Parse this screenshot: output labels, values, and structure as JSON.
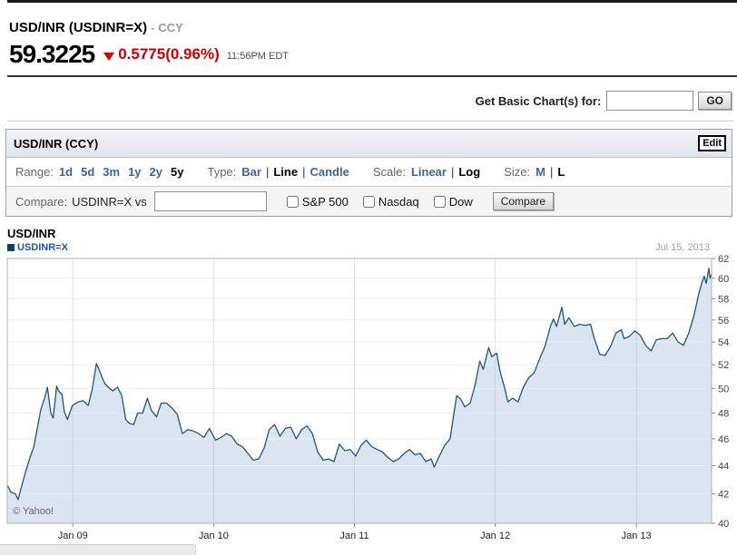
{
  "quote": {
    "title": "USD/INR (USDINR=X)",
    "suffix": "- CCY",
    "price": "59.3225",
    "change": "0.5775(0.96%)",
    "time": "11:56PM EDT",
    "down_color": "#cc0000"
  },
  "get_chart": {
    "label": "Get Basic Chart(s) for:",
    "input_value": "",
    "button": "GO"
  },
  "module": {
    "header": "USD/INR (CCY)",
    "edit_button": "Edit"
  },
  "toolbar": {
    "range_label": "Range:",
    "range_options": [
      {
        "label": "1d",
        "selected": false
      },
      {
        "label": "5d",
        "selected": false
      },
      {
        "label": "3m",
        "selected": false
      },
      {
        "label": "1y",
        "selected": false
      },
      {
        "label": "2y",
        "selected": false
      },
      {
        "label": "5y",
        "selected": true
      }
    ],
    "type_label": "Type:",
    "type_options": [
      {
        "label": "Bar",
        "selected": false
      },
      {
        "label": "Line",
        "selected": true
      },
      {
        "label": "Candle",
        "selected": false
      }
    ],
    "scale_label": "Scale:",
    "scale_options": [
      {
        "label": "Linear",
        "selected": false
      },
      {
        "label": "Log",
        "selected": true
      }
    ],
    "size_label": "Size:",
    "size_options": [
      {
        "label": "M",
        "selected": false
      },
      {
        "label": "L",
        "selected": true
      }
    ]
  },
  "compare": {
    "label": "Compare:",
    "symbol": "USDINR=X vs",
    "input_value": "",
    "checkboxes": [
      "S&P 500",
      "Nasdaq",
      "Dow"
    ],
    "button": "Compare"
  },
  "chart_data": {
    "type": "area",
    "title": "USD/INR",
    "legend": "USDINR=X",
    "date_label": "Jul 15, 2013",
    "copyright": "© Yahoo!",
    "colors": {
      "line": "#1f567c",
      "fill": "#d9e4ef",
      "legend_square": "#0e3f66",
      "grid": "#e4e4e4",
      "year_grid": "#b9b9b9",
      "border": "#b0b0b0"
    },
    "y_axis": {
      "min": 40,
      "max": 62,
      "step": 2,
      "scale": "log",
      "side": "right",
      "ticks": [
        62,
        60,
        58,
        56,
        54,
        52,
        50,
        48,
        46,
        44,
        42,
        40
      ]
    },
    "x_axis": {
      "start": "2008-07-15",
      "end": "2013-07-15",
      "ticks": [
        {
          "date": "2009-01-01",
          "label": "Jan 09"
        },
        {
          "date": "2010-01-01",
          "label": "Jan 10"
        },
        {
          "date": "2011-01-01",
          "label": "Jan 11"
        },
        {
          "date": "2012-01-01",
          "label": "Jan 12"
        },
        {
          "date": "2013-01-01",
          "label": "Jan 13"
        }
      ]
    },
    "series": [
      {
        "name": "USDINR=X",
        "points": [
          [
            "2008-07-15",
            42.6
          ],
          [
            "2008-07-25",
            42.1
          ],
          [
            "2008-08-05",
            42.0
          ],
          [
            "2008-08-12",
            41.6
          ],
          [
            "2008-08-22",
            42.6
          ],
          [
            "2008-09-01",
            43.6
          ],
          [
            "2008-09-12",
            44.6
          ],
          [
            "2008-09-22",
            45.4
          ],
          [
            "2008-10-01",
            46.8
          ],
          [
            "2008-10-10",
            48.3
          ],
          [
            "2008-10-20",
            49.2
          ],
          [
            "2008-10-27",
            50.1
          ],
          [
            "2008-11-05",
            48.0
          ],
          [
            "2008-11-11",
            47.6
          ],
          [
            "2008-11-20",
            50.2
          ],
          [
            "2008-11-25",
            49.8
          ],
          [
            "2008-12-04",
            49.5
          ],
          [
            "2008-12-10",
            48.1
          ],
          [
            "2008-12-18",
            47.5
          ],
          [
            "2008-12-31",
            48.6
          ],
          [
            "2009-01-15",
            48.9
          ],
          [
            "2009-01-28",
            49.0
          ],
          [
            "2009-02-10",
            48.6
          ],
          [
            "2009-02-20",
            49.9
          ],
          [
            "2009-03-03",
            52.1
          ],
          [
            "2009-03-10",
            51.6
          ],
          [
            "2009-03-18",
            50.9
          ],
          [
            "2009-03-25",
            50.4
          ],
          [
            "2009-04-06",
            50.0
          ],
          [
            "2009-04-15",
            49.8
          ],
          [
            "2009-04-27",
            50.1
          ],
          [
            "2009-05-08",
            49.4
          ],
          [
            "2009-05-18",
            47.5
          ],
          [
            "2009-05-27",
            47.2
          ],
          [
            "2009-06-08",
            47.1
          ],
          [
            "2009-06-18",
            48.0
          ],
          [
            "2009-07-01",
            48.0
          ],
          [
            "2009-07-13",
            49.2
          ],
          [
            "2009-07-24",
            48.2
          ],
          [
            "2009-08-06",
            47.7
          ],
          [
            "2009-08-18",
            48.8
          ],
          [
            "2009-09-01",
            48.8
          ],
          [
            "2009-09-15",
            48.4
          ],
          [
            "2009-09-29",
            47.9
          ],
          [
            "2009-10-12",
            46.4
          ],
          [
            "2009-10-26",
            46.7
          ],
          [
            "2009-11-09",
            46.6
          ],
          [
            "2009-11-23",
            46.4
          ],
          [
            "2009-12-07",
            46.1
          ],
          [
            "2009-12-21",
            46.8
          ],
          [
            "2010-01-06",
            45.9
          ],
          [
            "2010-01-20",
            46.1
          ],
          [
            "2010-02-03",
            46.4
          ],
          [
            "2010-02-17",
            46.2
          ],
          [
            "2010-03-03",
            45.6
          ],
          [
            "2010-03-17",
            45.4
          ],
          [
            "2010-03-31",
            44.9
          ],
          [
            "2010-04-14",
            44.4
          ],
          [
            "2010-04-28",
            44.5
          ],
          [
            "2010-05-12",
            45.3
          ],
          [
            "2010-05-25",
            46.7
          ],
          [
            "2010-06-08",
            47.1
          ],
          [
            "2010-06-22",
            46.2
          ],
          [
            "2010-07-06",
            46.8
          ],
          [
            "2010-07-20",
            46.9
          ],
          [
            "2010-08-03",
            46.0
          ],
          [
            "2010-08-17",
            46.7
          ],
          [
            "2010-08-31",
            47.0
          ],
          [
            "2010-09-14",
            46.4
          ],
          [
            "2010-09-28",
            45.0
          ],
          [
            "2010-10-12",
            44.4
          ],
          [
            "2010-10-26",
            44.5
          ],
          [
            "2010-11-09",
            44.3
          ],
          [
            "2010-11-23",
            45.6
          ],
          [
            "2010-12-07",
            45.1
          ],
          [
            "2010-12-21",
            45.2
          ],
          [
            "2011-01-04",
            44.7
          ],
          [
            "2011-01-18",
            45.5
          ],
          [
            "2011-02-01",
            45.9
          ],
          [
            "2011-02-15",
            45.4
          ],
          [
            "2011-03-01",
            45.2
          ],
          [
            "2011-03-15",
            45.0
          ],
          [
            "2011-03-29",
            44.6
          ],
          [
            "2011-04-12",
            44.3
          ],
          [
            "2011-04-26",
            44.5
          ],
          [
            "2011-05-10",
            44.9
          ],
          [
            "2011-05-24",
            45.2
          ],
          [
            "2011-06-07",
            44.8
          ],
          [
            "2011-06-21",
            44.9
          ],
          [
            "2011-07-05",
            44.3
          ],
          [
            "2011-07-19",
            44.5
          ],
          [
            "2011-07-27",
            43.9
          ],
          [
            "2011-08-09",
            44.7
          ],
          [
            "2011-08-23",
            45.5
          ],
          [
            "2011-09-06",
            46.0
          ],
          [
            "2011-09-14",
            47.6
          ],
          [
            "2011-09-23",
            49.4
          ],
          [
            "2011-10-04",
            49.1
          ],
          [
            "2011-10-14",
            48.5
          ],
          [
            "2011-10-28",
            48.8
          ],
          [
            "2011-11-10",
            50.3
          ],
          [
            "2011-11-22",
            52.3
          ],
          [
            "2011-12-01",
            51.6
          ],
          [
            "2011-12-15",
            53.5
          ],
          [
            "2011-12-23",
            52.7
          ],
          [
            "2012-01-05",
            53.0
          ],
          [
            "2012-01-13",
            51.5
          ],
          [
            "2012-01-25",
            50.1
          ],
          [
            "2012-02-03",
            48.9
          ],
          [
            "2012-02-15",
            49.2
          ],
          [
            "2012-02-29",
            48.9
          ],
          [
            "2012-03-14",
            50.1
          ],
          [
            "2012-03-28",
            50.9
          ],
          [
            "2012-04-11",
            51.3
          ],
          [
            "2012-04-25",
            52.5
          ],
          [
            "2012-05-09",
            53.6
          ],
          [
            "2012-05-23",
            55.4
          ],
          [
            "2012-05-31",
            56.1
          ],
          [
            "2012-06-08",
            55.4
          ],
          [
            "2012-06-22",
            57.2
          ],
          [
            "2012-06-29",
            55.6
          ],
          [
            "2012-07-10",
            56.2
          ],
          [
            "2012-07-24",
            55.4
          ],
          [
            "2012-08-07",
            55.6
          ],
          [
            "2012-08-21",
            55.5
          ],
          [
            "2012-09-04",
            55.6
          ],
          [
            "2012-09-14",
            54.3
          ],
          [
            "2012-09-28",
            52.9
          ],
          [
            "2012-10-12",
            52.8
          ],
          [
            "2012-10-26",
            53.6
          ],
          [
            "2012-11-09",
            54.8
          ],
          [
            "2012-11-23",
            55.1
          ],
          [
            "2012-11-30",
            54.3
          ],
          [
            "2012-12-14",
            54.5
          ],
          [
            "2012-12-28",
            55.0
          ],
          [
            "2013-01-11",
            54.6
          ],
          [
            "2013-01-25",
            53.7
          ],
          [
            "2013-02-08",
            53.2
          ],
          [
            "2013-02-22",
            54.2
          ],
          [
            "2013-03-08",
            54.3
          ],
          [
            "2013-03-22",
            54.3
          ],
          [
            "2013-04-05",
            54.8
          ],
          [
            "2013-04-19",
            54.0
          ],
          [
            "2013-05-03",
            53.7
          ],
          [
            "2013-05-17",
            54.8
          ],
          [
            "2013-05-31",
            56.5
          ],
          [
            "2013-06-11",
            58.4
          ],
          [
            "2013-06-20",
            59.6
          ],
          [
            "2013-06-26",
            60.2
          ],
          [
            "2013-07-01",
            59.5
          ],
          [
            "2013-07-08",
            61.0
          ],
          [
            "2013-07-11",
            60.0
          ],
          [
            "2013-07-15",
            60.4
          ]
        ]
      }
    ]
  }
}
